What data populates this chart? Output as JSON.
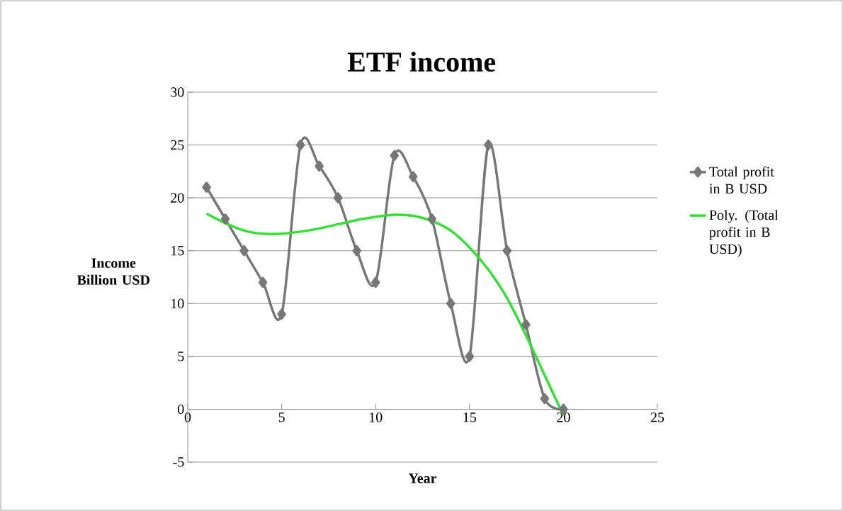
{
  "chart_data": {
    "type": "line",
    "title": "ETF income",
    "xlabel": "Year",
    "ylabel": "Income Billion USD",
    "xlim": [
      0,
      25
    ],
    "xticks": [
      0,
      5,
      10,
      15,
      20,
      25
    ],
    "ylim": [
      -5,
      30
    ],
    "yticks": [
      -5,
      0,
      5,
      10,
      15,
      20,
      25,
      30
    ],
    "grid": "y",
    "legend": "right",
    "series": [
      {
        "name": "Total profit in B USD",
        "color": "#777777",
        "marker": "diamond",
        "line_style": "solid",
        "x": [
          1,
          2,
          3,
          4,
          5,
          6,
          7,
          8,
          9,
          10,
          11,
          12,
          13,
          14,
          15,
          16,
          17,
          18,
          19,
          20
        ],
        "values": [
          21,
          18,
          15,
          12,
          9,
          25,
          23,
          20,
          15,
          12,
          24,
          22,
          18,
          10,
          5,
          25,
          15,
          8,
          1,
          0
        ]
      },
      {
        "name": "Poly. (Total profit in B USD)",
        "color": "#33e033",
        "marker": "none",
        "line_style": "solid",
        "x": [
          1,
          2,
          3,
          4,
          5,
          6,
          7,
          8,
          9,
          10,
          11,
          12,
          13,
          14,
          15,
          16,
          17,
          18,
          19,
          20
        ],
        "values": [
          18.5,
          17.6,
          16.9,
          16.6,
          16.6,
          16.8,
          17.1,
          17.5,
          17.9,
          18.2,
          18.4,
          18.3,
          17.8,
          16.9,
          15.3,
          13.2,
          10.5,
          7.0,
          3.2,
          -0.6
        ]
      }
    ]
  }
}
